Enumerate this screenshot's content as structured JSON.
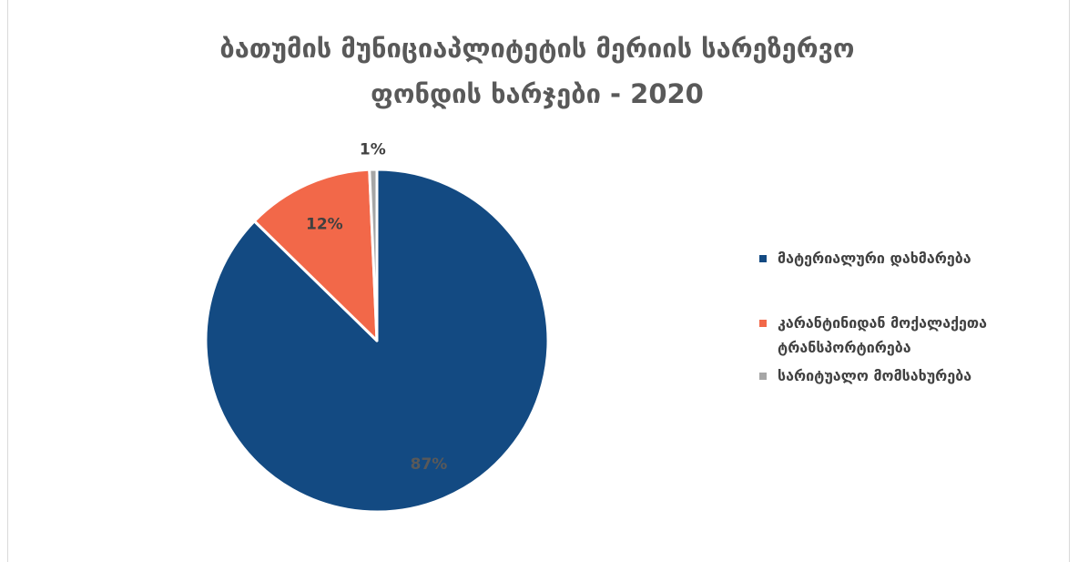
{
  "chart_data": {
    "type": "pie",
    "title_lines": [
      "ბათუმის მუნიციაპლიტეტის მერიის სარეზერვო",
      "ფონდის ხარჯები - 2020"
    ],
    "categories": [
      "მატერიალური დახმარება",
      "კარანტინიდან მოქალაქეთა ტრანსპორტირება",
      "სარიტუალო მომსახურება"
    ],
    "legend_lines": [
      [
        "მატერიალური დახმარება"
      ],
      [
        "კარანტინიდან მოქალაქეთა",
        "ტრანსპორტირება"
      ],
      [
        "სარიტუალო მომსახურება"
      ]
    ],
    "values": [
      87.3,
      12.0,
      0.7
    ],
    "data_labels": [
      "87%",
      "12%",
      "1%"
    ],
    "colors": [
      "#134a82",
      "#f26849",
      "#a6a6a6"
    ],
    "data_label_colors": [
      "#595959",
      "#404040",
      "#404040"
    ],
    "legend_placement": "right",
    "start_angle_deg": 0,
    "direction": "clockwise"
  }
}
